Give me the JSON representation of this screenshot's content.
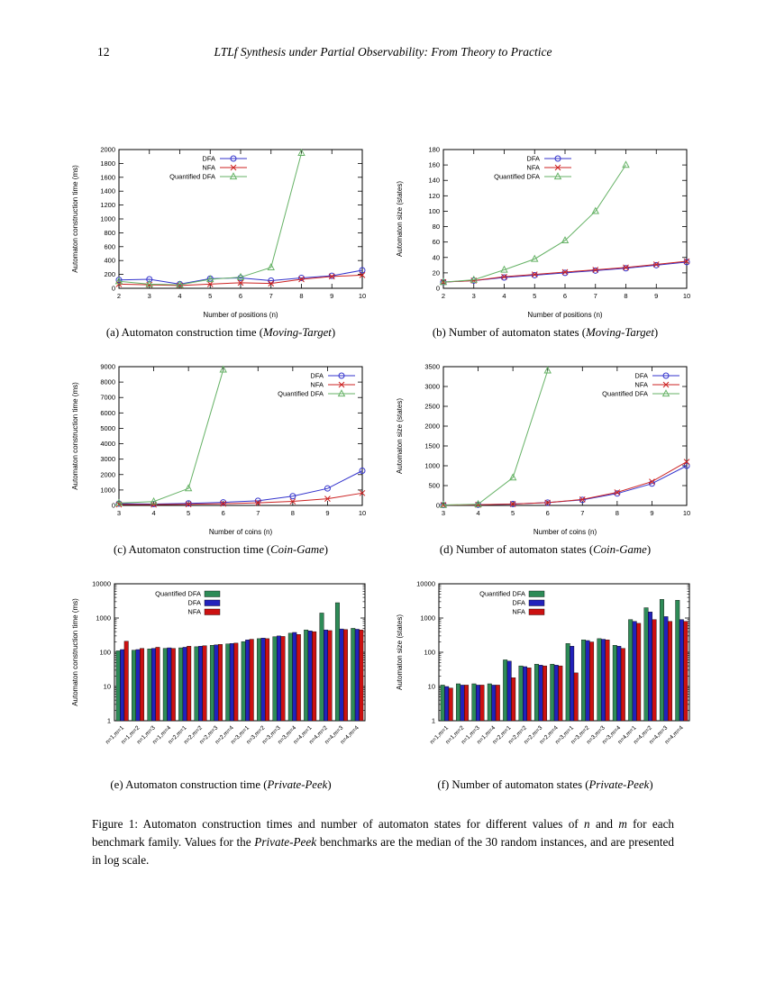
{
  "page": {
    "number": "12",
    "header_title": "LTLf Synthesis under Partial Observability: From Theory to Practice"
  },
  "figure_caption": {
    "segments": [
      {
        "text": "Figure 1: Automaton construction times and number of automaton states for different values of ",
        "italic": false
      },
      {
        "text": "n",
        "italic": true
      },
      {
        "text": " and ",
        "italic": false
      },
      {
        "text": "m",
        "italic": true
      },
      {
        "text": " for each benchmark family. Values for the ",
        "italic": false
      },
      {
        "text": "Private-Peek",
        "italic": true
      },
      {
        "text": " benchmarks are the median of the 30 random instances, and are presented in log scale.",
        "italic": false
      }
    ]
  },
  "colors": {
    "line_blue": "#3333cc",
    "line_red": "#cc2222",
    "line_green": "#66b266",
    "bar_green": "#2e8b57",
    "bar_blue": "#2222bb",
    "bar_red": "#cc1111"
  },
  "chart_data": [
    {
      "id": "a",
      "type": "line",
      "caption": {
        "prefix": "(a) Automaton construction time (",
        "name": "Moving-Target",
        "suffix": ")"
      },
      "xlabel": "Number of positions (n)",
      "ylabel": "Automaton construction time (ms)",
      "xlim": [
        2,
        10
      ],
      "xticks": [
        2,
        3,
        4,
        5,
        6,
        7,
        8,
        9,
        10
      ],
      "ylim": [
        0,
        2000
      ],
      "yticks": [
        0,
        200,
        400,
        600,
        800,
        1000,
        1200,
        1400,
        1600,
        1800,
        2000
      ],
      "legend": "left",
      "series": [
        {
          "name": "DFA",
          "color": "#3333cc",
          "marker": "circle",
          "x": [
            2,
            3,
            4,
            5,
            6,
            7,
            8,
            9,
            10
          ],
          "y": [
            120,
            130,
            60,
            140,
            150,
            110,
            150,
            180,
            260
          ]
        },
        {
          "name": "NFA",
          "color": "#cc2222",
          "marker": "cross",
          "x": [
            2,
            3,
            4,
            5,
            6,
            7,
            8,
            9,
            10
          ],
          "y": [
            60,
            50,
            40,
            60,
            80,
            70,
            130,
            170,
            190
          ]
        },
        {
          "name": "Quantified DFA",
          "color": "#66b266",
          "marker": "triangle",
          "x": [
            2,
            3,
            4,
            5,
            6,
            7,
            8
          ],
          "y": [
            100,
            60,
            50,
            130,
            160,
            300,
            1950
          ]
        }
      ]
    },
    {
      "id": "b",
      "type": "line",
      "caption": {
        "prefix": "(b) Number of automaton states (",
        "name": "Moving-Target",
        "suffix": ")"
      },
      "xlabel": "Number of positions (n)",
      "ylabel": "Automaton size (states)",
      "xlim": [
        2,
        10
      ],
      "xticks": [
        2,
        3,
        4,
        5,
        6,
        7,
        8,
        9,
        10
      ],
      "ylim": [
        0,
        180
      ],
      "yticks": [
        0,
        20,
        40,
        60,
        80,
        100,
        120,
        140,
        160,
        180
      ],
      "legend": "left",
      "series": [
        {
          "name": "DFA",
          "color": "#3333cc",
          "marker": "circle",
          "x": [
            2,
            3,
            4,
            5,
            6,
            7,
            8,
            9,
            10
          ],
          "y": [
            8,
            10,
            14,
            17,
            20,
            23,
            26,
            30,
            34
          ]
        },
        {
          "name": "NFA",
          "color": "#cc2222",
          "marker": "cross",
          "x": [
            2,
            3,
            4,
            5,
            6,
            7,
            8,
            9,
            10
          ],
          "y": [
            8,
            10,
            15,
            18,
            21,
            24,
            27,
            31,
            35
          ]
        },
        {
          "name": "Quantified DFA",
          "color": "#66b266",
          "marker": "triangle",
          "x": [
            2,
            3,
            4,
            5,
            6,
            7,
            8
          ],
          "y": [
            8,
            11,
            24,
            38,
            62,
            100,
            160
          ]
        }
      ]
    },
    {
      "id": "c",
      "type": "line",
      "caption": {
        "prefix": "(c) Automaton construction time (",
        "name": "Coin-Game",
        "suffix": ")"
      },
      "xlabel": "Number of coins (n)",
      "ylabel": "Automaton construction time (ms)",
      "xlim": [
        3,
        10
      ],
      "xticks": [
        3,
        4,
        5,
        6,
        7,
        8,
        9,
        10
      ],
      "ylim": [
        0,
        9000
      ],
      "yticks": [
        0,
        1000,
        2000,
        3000,
        4000,
        5000,
        6000,
        7000,
        8000,
        9000
      ],
      "legend": "right",
      "series": [
        {
          "name": "DFA",
          "color": "#3333cc",
          "marker": "circle",
          "x": [
            3,
            4,
            5,
            6,
            7,
            8,
            9,
            10
          ],
          "y": [
            120,
            90,
            130,
            200,
            300,
            600,
            1100,
            2250
          ]
        },
        {
          "name": "NFA",
          "color": "#cc2222",
          "marker": "cross",
          "x": [
            3,
            4,
            5,
            6,
            7,
            8,
            9,
            10
          ],
          "y": [
            60,
            50,
            70,
            110,
            170,
            260,
            430,
            800
          ]
        },
        {
          "name": "Quantified DFA",
          "color": "#66b266",
          "marker": "triangle",
          "x": [
            3,
            4,
            5,
            6
          ],
          "y": [
            150,
            250,
            1100,
            8800
          ]
        }
      ]
    },
    {
      "id": "d",
      "type": "line",
      "caption": {
        "prefix": "(d) Number of automaton states (",
        "name": "Coin-Game",
        "suffix": ")"
      },
      "xlabel": "Number of coins (n)",
      "ylabel": "Automaton size (states)",
      "xlim": [
        3,
        10
      ],
      "xticks": [
        3,
        4,
        5,
        6,
        7,
        8,
        9,
        10
      ],
      "ylim": [
        0,
        3500
      ],
      "yticks": [
        0,
        500,
        1000,
        1500,
        2000,
        2500,
        3000,
        3500
      ],
      "legend": "right",
      "series": [
        {
          "name": "DFA",
          "color": "#3333cc",
          "marker": "circle",
          "x": [
            3,
            4,
            5,
            6,
            7,
            8,
            9,
            10
          ],
          "y": [
            8,
            16,
            35,
            70,
            140,
            300,
            550,
            1000
          ]
        },
        {
          "name": "NFA",
          "color": "#cc2222",
          "marker": "cross",
          "x": [
            3,
            4,
            5,
            6,
            7,
            8,
            9,
            10
          ],
          "y": [
            8,
            16,
            35,
            70,
            150,
            330,
            600,
            1100
          ]
        },
        {
          "name": "Quantified DFA",
          "color": "#66b266",
          "marker": "triangle",
          "x": [
            3,
            4,
            5,
            6
          ],
          "y": [
            10,
            30,
            700,
            3400
          ]
        }
      ]
    },
    {
      "id": "e",
      "type": "bar",
      "caption": {
        "prefix": "(e) Automaton construction time (",
        "name": "Private-Peek",
        "suffix": ")"
      },
      "ylabel": "Automaton construction time (ms)",
      "ylim": [
        1,
        10000
      ],
      "yticks": [
        1,
        10,
        100,
        1000,
        10000
      ],
      "categories": [
        "n=1,m=1",
        "n=1,m=2",
        "n=1,m=3",
        "n=1,m=4",
        "n=2,m=1",
        "n=2,m=2",
        "n=2,m=3",
        "n=2,m=4",
        "n=3,m=1",
        "n=3,m=2",
        "n=3,m=3",
        "n=3,m=4",
        "n=4,m=1",
        "n=4,m=2",
        "n=4,m=3",
        "n=4,m=4"
      ],
      "series": [
        {
          "name": "Quantified DFA",
          "color": "#2e8b57",
          "values": [
            110,
            115,
            125,
            130,
            135,
            145,
            160,
            175,
            205,
            250,
            285,
            360,
            450,
            1400,
            2800,
            500
          ]
        },
        {
          "name": "DFA",
          "color": "#2222bb",
          "values": [
            120,
            120,
            130,
            135,
            140,
            150,
            165,
            180,
            230,
            260,
            300,
            380,
            420,
            450,
            480,
            470
          ]
        },
        {
          "name": "NFA",
          "color": "#cc1111",
          "values": [
            210,
            130,
            140,
            130,
            150,
            155,
            170,
            185,
            240,
            250,
            290,
            330,
            400,
            430,
            460,
            450
          ]
        }
      ]
    },
    {
      "id": "f",
      "type": "bar",
      "caption": {
        "prefix": "(f) Number of automaton states (",
        "name": "Private-Peek",
        "suffix": ")"
      },
      "ylabel": "Automaton size (states)",
      "ylim": [
        1,
        10000
      ],
      "yticks": [
        1,
        10,
        100,
        1000,
        10000
      ],
      "categories": [
        "n=1,m=1",
        "n=1,m=2",
        "n=1,m=3",
        "n=1,m=4",
        "n=2,m=1",
        "n=2,m=2",
        "n=2,m=3",
        "n=2,m=4",
        "n=3,m=1",
        "n=3,m=2",
        "n=3,m=3",
        "n=3,m=4",
        "n=4,m=1",
        "n=4,m=2",
        "n=4,m=3",
        "n=4,m=4"
      ],
      "series": [
        {
          "name": "Quantified DFA",
          "color": "#2e8b57",
          "values": [
            11,
            12,
            12,
            12,
            60,
            40,
            45,
            45,
            180,
            230,
            250,
            160,
            900,
            2000,
            3500,
            3300
          ]
        },
        {
          "name": "DFA",
          "color": "#2222bb",
          "values": [
            10,
            11,
            11,
            11,
            55,
            38,
            42,
            42,
            150,
            220,
            240,
            150,
            800,
            1500,
            1100,
            900
          ]
        },
        {
          "name": "NFA",
          "color": "#cc1111",
          "values": [
            9,
            11,
            11,
            11,
            18,
            35,
            40,
            40,
            25,
            200,
            230,
            130,
            700,
            900,
            800,
            800
          ]
        }
      ]
    }
  ]
}
